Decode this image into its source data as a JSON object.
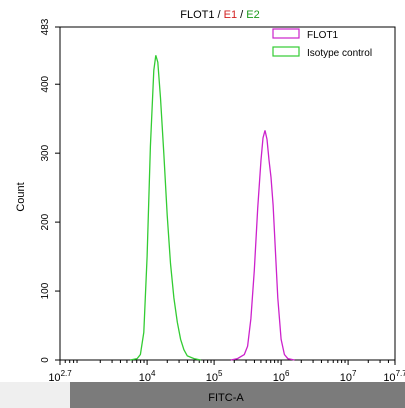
{
  "chart_data": {
    "type": "line",
    "title_parts": [
      {
        "text": "FLOT1",
        "color": "#000000"
      },
      {
        "text": " / ",
        "color": "#000000"
      },
      {
        "text": "E1",
        "color": "#d21e1e"
      },
      {
        "text": " / ",
        "color": "#000000"
      },
      {
        "text": "E2",
        "color": "#1a9a1a"
      }
    ],
    "xlabel": "FITC-A",
    "ylabel": "Count",
    "x_scale": "log10",
    "xlim_exp": [
      2.7,
      7.7
    ],
    "ylim": [
      0,
      483
    ],
    "yticks": [
      0,
      100,
      200,
      300,
      400,
      483
    ],
    "xticks": [
      {
        "exp": 2.7,
        "base": "10",
        "sup": "2.7"
      },
      {
        "exp": 4,
        "base": "10",
        "sup": "4"
      },
      {
        "exp": 5,
        "base": "10",
        "sup": "5"
      },
      {
        "exp": 6,
        "base": "10",
        "sup": "6"
      },
      {
        "exp": 7,
        "base": "10",
        "sup": "7"
      },
      {
        "exp": 7.7,
        "base": "10",
        "sup": "7.7"
      }
    ],
    "grid": false,
    "legend_position": "top-right",
    "series": [
      {
        "name": "FLOT1",
        "color": "#cc22cc",
        "points": [
          [
            5.25,
            0
          ],
          [
            5.35,
            2
          ],
          [
            5.45,
            8
          ],
          [
            5.5,
            20
          ],
          [
            5.55,
            60
          ],
          [
            5.6,
            130
          ],
          [
            5.65,
            220
          ],
          [
            5.7,
            290
          ],
          [
            5.73,
            322
          ],
          [
            5.76,
            333
          ],
          [
            5.79,
            320
          ],
          [
            5.82,
            290
          ],
          [
            5.85,
            265
          ],
          [
            5.88,
            225
          ],
          [
            5.92,
            150
          ],
          [
            5.95,
            90
          ],
          [
            6.0,
            30
          ],
          [
            6.05,
            8
          ],
          [
            6.1,
            2
          ],
          [
            6.2,
            0
          ]
        ]
      },
      {
        "name": "Isotype control",
        "color": "#33cc33",
        "points": [
          [
            3.75,
            0
          ],
          [
            3.85,
            2
          ],
          [
            3.9,
            8
          ],
          [
            3.95,
            40
          ],
          [
            4.0,
            150
          ],
          [
            4.05,
            310
          ],
          [
            4.1,
            420
          ],
          [
            4.13,
            442
          ],
          [
            4.16,
            432
          ],
          [
            4.2,
            380
          ],
          [
            4.25,
            300
          ],
          [
            4.3,
            210
          ],
          [
            4.35,
            140
          ],
          [
            4.4,
            90
          ],
          [
            4.45,
            55
          ],
          [
            4.5,
            30
          ],
          [
            4.55,
            15
          ],
          [
            4.6,
            6
          ],
          [
            4.7,
            2
          ],
          [
            4.8,
            0
          ]
        ]
      }
    ]
  }
}
